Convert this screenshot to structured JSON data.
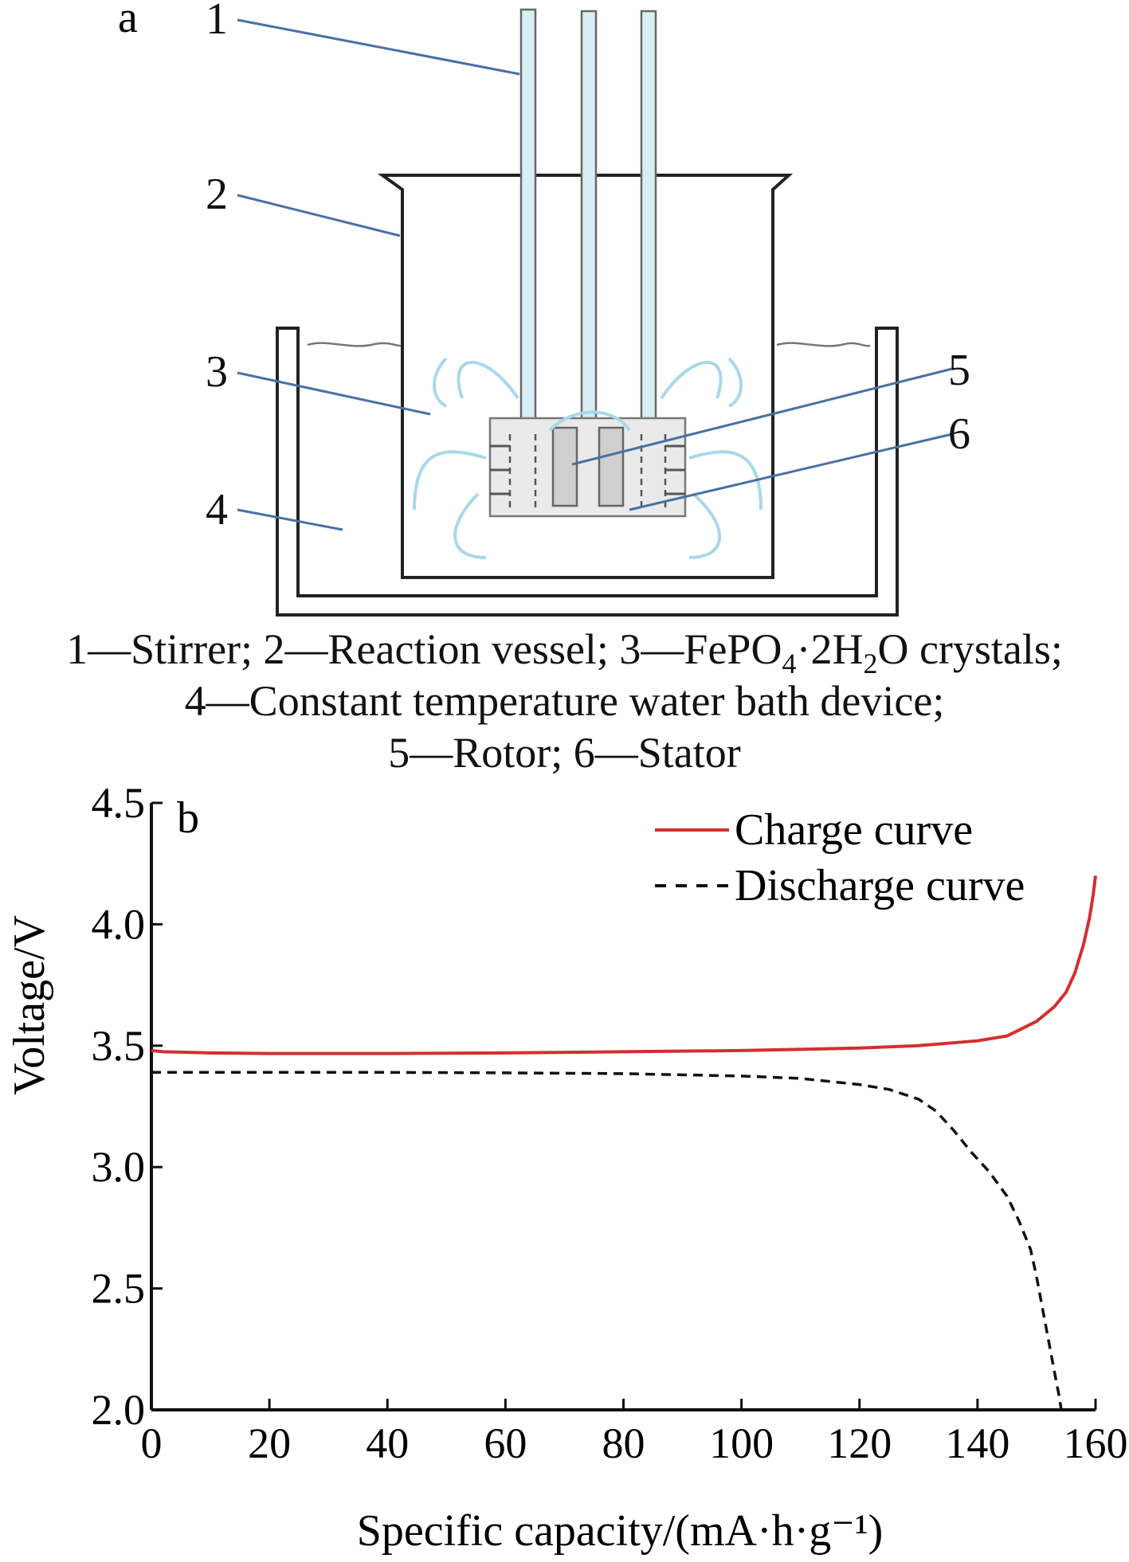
{
  "panel_a": {
    "label": "a",
    "callouts": [
      "1",
      "2",
      "3",
      "4",
      "5",
      "6"
    ],
    "legend_lines": [
      {
        "parts": [
          {
            "t": "1—Stirrer; 2—Reaction vessel; 3—FePO"
          },
          {
            "t": "4",
            "sub": true
          },
          {
            "t": "·2H"
          },
          {
            "t": "2",
            "sub": true
          },
          {
            "t": "O crystals;"
          }
        ]
      },
      {
        "parts": [
          {
            "t": "4—Constant temperature water bath device;"
          }
        ]
      },
      {
        "parts": [
          {
            "t": "5—Rotor; 6—Stator"
          }
        ]
      }
    ]
  },
  "panel_b": {
    "label": "b"
  },
  "colors": {
    "charge": "#d32f2f",
    "discharge": "#111111",
    "leader": "#4a6fa5",
    "flow": "#a8d8ea",
    "vessel": "#222222"
  },
  "chart_data": {
    "type": "line",
    "xlabel": "Specific capacity/(mA·h·g⁻¹)",
    "ylabel": "Voltage/V",
    "xlim": [
      0,
      160
    ],
    "ylim": [
      2.0,
      4.5
    ],
    "xticks": [
      "0",
      "20",
      "40",
      "60",
      "80",
      "100",
      "120",
      "140",
      "160"
    ],
    "yticks": [
      "2.0",
      "2.5",
      "3.0",
      "3.5",
      "4.0",
      "4.5"
    ],
    "legend_position": "top-right",
    "grid": false,
    "series": [
      {
        "name": "Charge curve",
        "style": "solid",
        "x": [
          0,
          2,
          10,
          20,
          40,
          60,
          80,
          100,
          110,
          120,
          130,
          140,
          145,
          150,
          153,
          155,
          156.5,
          158,
          159,
          159.6,
          160
        ],
        "y": [
          3.48,
          3.475,
          3.47,
          3.468,
          3.468,
          3.47,
          3.475,
          3.48,
          3.485,
          3.49,
          3.5,
          3.52,
          3.54,
          3.6,
          3.66,
          3.72,
          3.8,
          3.92,
          4.03,
          4.12,
          4.2
        ]
      },
      {
        "name": "Discharge curve",
        "style": "dashed",
        "x": [
          0,
          20,
          40,
          60,
          80,
          100,
          110,
          120,
          125,
          130,
          133,
          136,
          139,
          142,
          145,
          147,
          149,
          150,
          151,
          152,
          153,
          153.8,
          154.2
        ],
        "y": [
          3.39,
          3.39,
          3.39,
          3.388,
          3.385,
          3.375,
          3.365,
          3.34,
          3.32,
          3.28,
          3.23,
          3.15,
          3.06,
          2.98,
          2.88,
          2.78,
          2.66,
          2.55,
          2.42,
          2.29,
          2.16,
          2.06,
          2.0
        ]
      }
    ]
  }
}
